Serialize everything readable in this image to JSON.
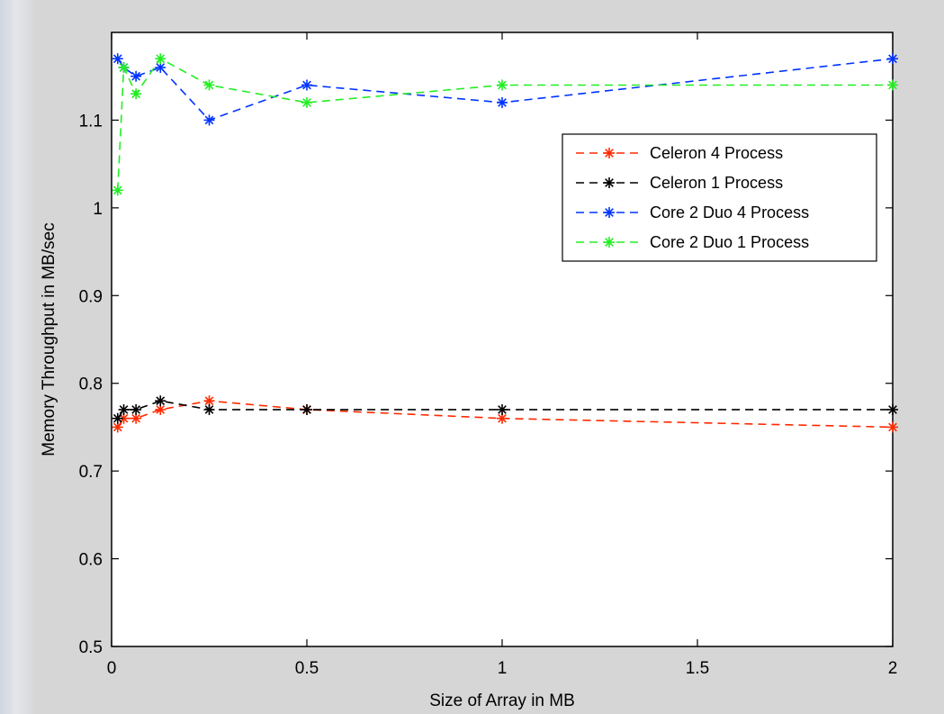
{
  "chart_data": {
    "type": "line",
    "title": "",
    "xlabel": "Size of Array in MB",
    "ylabel": "Memory Throughput in MB/sec",
    "xlim": [
      0,
      2
    ],
    "ylim": [
      0.5,
      1.2
    ],
    "xticks": [
      0,
      0.5,
      1,
      1.5,
      2
    ],
    "xtick_labels": [
      "0",
      "0.5",
      "1",
      "1.5",
      "2"
    ],
    "yticks": [
      0.5,
      0.6,
      0.7,
      0.8,
      0.9,
      1.0,
      1.1
    ],
    "ytick_labels": [
      "0.5",
      "0.6",
      "0.7",
      "0.8",
      "0.9",
      "1",
      "1.1"
    ],
    "grid": false,
    "legend_position": "upper-right",
    "line_style": "dashed",
    "marker": "asterisk",
    "series": [
      {
        "name": "Celeron 4 Process",
        "color": "#ff2a00",
        "x": [
          0.0156,
          0.0312,
          0.0625,
          0.125,
          0.25,
          0.5,
          1,
          2
        ],
        "y": [
          0.75,
          0.76,
          0.76,
          0.77,
          0.78,
          0.77,
          0.76,
          0.75
        ]
      },
      {
        "name": "Celeron 1 Process",
        "color": "#000000",
        "x": [
          0.0156,
          0.0312,
          0.0625,
          0.125,
          0.25,
          0.5,
          1,
          2
        ],
        "y": [
          0.76,
          0.77,
          0.77,
          0.78,
          0.77,
          0.77,
          0.77,
          0.77
        ]
      },
      {
        "name": "Core 2 Duo 4 Process",
        "color": "#0033ff",
        "x": [
          0.0156,
          0.0312,
          0.0625,
          0.125,
          0.25,
          0.5,
          1,
          2
        ],
        "y": [
          1.17,
          1.16,
          1.15,
          1.16,
          1.1,
          1.14,
          1.12,
          1.17
        ]
      },
      {
        "name": "Core 2 Duo 1 Process",
        "color": "#22ee22",
        "x": [
          0.0156,
          0.0312,
          0.0625,
          0.125,
          0.25,
          0.5,
          1,
          2
        ],
        "y": [
          1.02,
          1.16,
          1.13,
          1.17,
          1.14,
          1.12,
          1.14,
          1.14
        ]
      }
    ]
  }
}
